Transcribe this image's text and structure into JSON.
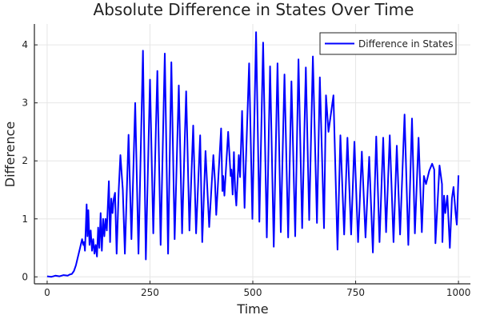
{
  "chart_data": {
    "type": "line",
    "title": "Absolute Difference in States Over Time",
    "xlabel": "Time",
    "ylabel": "Difference",
    "xlim": [
      -31,
      1029
    ],
    "ylim": [
      -0.12,
      4.36
    ],
    "xticks": [
      0,
      250,
      500,
      750,
      1000
    ],
    "yticks": [
      0,
      1,
      2,
      3,
      4
    ],
    "grid": true,
    "legend_position": "top-right",
    "series": [
      {
        "name": "Difference in States",
        "color": "#0000ff",
        "points": [
          [
            0,
            0.01
          ],
          [
            10,
            0.0
          ],
          [
            20,
            0.02
          ],
          [
            30,
            0.01
          ],
          [
            40,
            0.03
          ],
          [
            50,
            0.02
          ],
          [
            55,
            0.04
          ],
          [
            60,
            0.05
          ],
          [
            65,
            0.1
          ],
          [
            70,
            0.2
          ],
          [
            75,
            0.35
          ],
          [
            80,
            0.5
          ],
          [
            85,
            0.65
          ],
          [
            88,
            0.55
          ],
          [
            90,
            0.6
          ],
          [
            92,
            0.45
          ],
          [
            96,
            1.25
          ],
          [
            98,
            0.7
          ],
          [
            100,
            1.15
          ],
          [
            103,
            0.55
          ],
          [
            106,
            0.8
          ],
          [
            109,
            0.45
          ],
          [
            112,
            0.65
          ],
          [
            115,
            0.4
          ],
          [
            118,
            0.55
          ],
          [
            121,
            0.35
          ],
          [
            124,
            0.85
          ],
          [
            127,
            0.5
          ],
          [
            130,
            1.1
          ],
          [
            133,
            0.45
          ],
          [
            136,
            1.0
          ],
          [
            139,
            0.7
          ],
          [
            142,
            1.0
          ],
          [
            145,
            0.8
          ],
          [
            150,
            1.65
          ],
          [
            153,
            0.6
          ],
          [
            156,
            1.35
          ],
          [
            159,
            1.1
          ],
          [
            162,
            1.35
          ],
          [
            165,
            1.45
          ],
          [
            169,
            0.4
          ],
          [
            174,
            1.5
          ],
          [
            178,
            2.1
          ],
          [
            184,
            1.5
          ],
          [
            189,
            0.4
          ],
          [
            198,
            2.45
          ],
          [
            205,
            0.65
          ],
          [
            214,
            3.0
          ],
          [
            222,
            0.4
          ],
          [
            233,
            3.9
          ],
          [
            240,
            0.3
          ],
          [
            250,
            3.4
          ],
          [
            258,
            0.75
          ],
          [
            268,
            3.55
          ],
          [
            276,
            0.55
          ],
          [
            286,
            3.85
          ],
          [
            294,
            0.4
          ],
          [
            302,
            3.7
          ],
          [
            310,
            0.65
          ],
          [
            320,
            3.3
          ],
          [
            328,
            0.75
          ],
          [
            338,
            3.2
          ],
          [
            346,
            0.8
          ],
          [
            355,
            2.61
          ],
          [
            362,
            0.75
          ],
          [
            372,
            2.44
          ],
          [
            377,
            0.6
          ],
          [
            385,
            2.17
          ],
          [
            394,
            0.86
          ],
          [
            404,
            2.1
          ],
          [
            408,
            1.65
          ],
          [
            411,
            1.07
          ],
          [
            423,
            2.56
          ],
          [
            426,
            1.48
          ],
          [
            428,
            1.74
          ],
          [
            431,
            1.4
          ],
          [
            440,
            2.5
          ],
          [
            446,
            1.74
          ],
          [
            448,
            1.85
          ],
          [
            451,
            1.42
          ],
          [
            454,
            2.15
          ],
          [
            457,
            1.5
          ],
          [
            460,
            1.23
          ],
          [
            466,
            2.1
          ],
          [
            469,
            1.72
          ],
          [
            474,
            2.86
          ],
          [
            480,
            1.19
          ],
          [
            482,
            1.74
          ],
          [
            491,
            3.68
          ],
          [
            499,
            1.0
          ],
          [
            508,
            4.22
          ],
          [
            516,
            0.95
          ],
          [
            525,
            4.04
          ],
          [
            534,
            0.68
          ],
          [
            542,
            3.63
          ],
          [
            551,
            0.52
          ],
          [
            560,
            3.68
          ],
          [
            568,
            0.77
          ],
          [
            577,
            3.49
          ],
          [
            586,
            0.68
          ],
          [
            594,
            3.37
          ],
          [
            603,
            0.7
          ],
          [
            611,
            3.75
          ],
          [
            620,
            0.84
          ],
          [
            629,
            3.61
          ],
          [
            637,
            0.98
          ],
          [
            646,
            3.8
          ],
          [
            656,
            0.93
          ],
          [
            663,
            3.44
          ],
          [
            673,
            0.84
          ],
          [
            678,
            3.13
          ],
          [
            684,
            2.5
          ],
          [
            696,
            3.13
          ],
          [
            706,
            0.47
          ],
          [
            713,
            2.44
          ],
          [
            722,
            0.73
          ],
          [
            730,
            2.4
          ],
          [
            739,
            0.73
          ],
          [
            747,
            2.33
          ],
          [
            756,
            0.6
          ],
          [
            765,
            2.16
          ],
          [
            774,
            0.68
          ],
          [
            783,
            2.07
          ],
          [
            792,
            0.42
          ],
          [
            800,
            2.42
          ],
          [
            808,
            0.6
          ],
          [
            817,
            2.4
          ],
          [
            824,
            0.77
          ],
          [
            833,
            2.44
          ],
          [
            842,
            0.6
          ],
          [
            850,
            2.26
          ],
          [
            858,
            0.73
          ],
          [
            869,
            2.8
          ],
          [
            878,
            0.55
          ],
          [
            887,
            2.73
          ],
          [
            894,
            0.75
          ],
          [
            903,
            2.4
          ],
          [
            911,
            0.77
          ],
          [
            916,
            1.74
          ],
          [
            921,
            1.6
          ],
          [
            929,
            1.83
          ],
          [
            936,
            1.95
          ],
          [
            941,
            1.85
          ],
          [
            944,
            0.58
          ],
          [
            954,
            1.92
          ],
          [
            960,
            1.6
          ],
          [
            961,
            0.6
          ],
          [
            965,
            1.4
          ],
          [
            968,
            1.1
          ],
          [
            973,
            1.4
          ],
          [
            979,
            0.5
          ],
          [
            984,
            1.35
          ],
          [
            988,
            1.55
          ],
          [
            993,
            1.1
          ],
          [
            996,
            0.9
          ],
          [
            1000,
            1.75
          ]
        ]
      }
    ]
  }
}
